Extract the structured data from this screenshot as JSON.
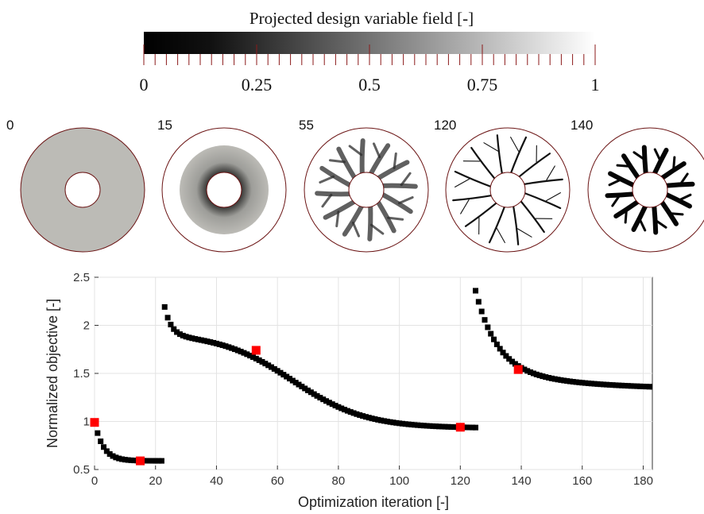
{
  "colorbar": {
    "title": "Projected design variable field [-]",
    "ticks": [
      "0",
      "0.25",
      "0.5",
      "0.75",
      "1"
    ],
    "gradient_from": "#000000",
    "gradient_to": "#ffffff",
    "tick_color": "#8b1a1a"
  },
  "snapshots": [
    {
      "label": "0",
      "state": "uniform-gray"
    },
    {
      "label": "15",
      "state": "gray-annulus"
    },
    {
      "label": "55",
      "state": "fuzzy-branches"
    },
    {
      "label": "120",
      "state": "thin-branches"
    },
    {
      "label": "140",
      "state": "solid-branches"
    }
  ],
  "chart_data": {
    "type": "scatter",
    "xlabel": "Optimization iteration [-]",
    "ylabel": "Normalized objective [-]",
    "xlim": [
      0,
      183
    ],
    "ylim": [
      0.5,
      2.5
    ],
    "xticks": [
      "0",
      "20",
      "40",
      "60",
      "80",
      "100",
      "120",
      "140",
      "160",
      "180"
    ],
    "yticks": [
      "0.5",
      "1",
      "1.5",
      "2",
      "2.5"
    ],
    "grid": true,
    "marker_color": "#000000",
    "highlight_color": "#ff0000",
    "segments": [
      {
        "x_start": 0,
        "x_end": 22,
        "model": "exp",
        "start": 1.0,
        "end": 0.59,
        "rate": 0.35
      },
      {
        "x_start": 23,
        "x_end": 125,
        "model": "sigmoid",
        "start": 2.22,
        "plateau": 1.92,
        "end": 0.93,
        "center": 65,
        "width": 12
      },
      {
        "x_start": 125,
        "x_end": 183,
        "model": "decay",
        "start": 2.36,
        "end": 1.33,
        "rate": 0.12
      }
    ],
    "highlighted_points": [
      {
        "x": 0,
        "y": 0.99
      },
      {
        "x": 15,
        "y": 0.59
      },
      {
        "x": 53,
        "y": 1.74
      },
      {
        "x": 120,
        "y": 0.94
      },
      {
        "x": 139,
        "y": 1.54
      }
    ]
  }
}
